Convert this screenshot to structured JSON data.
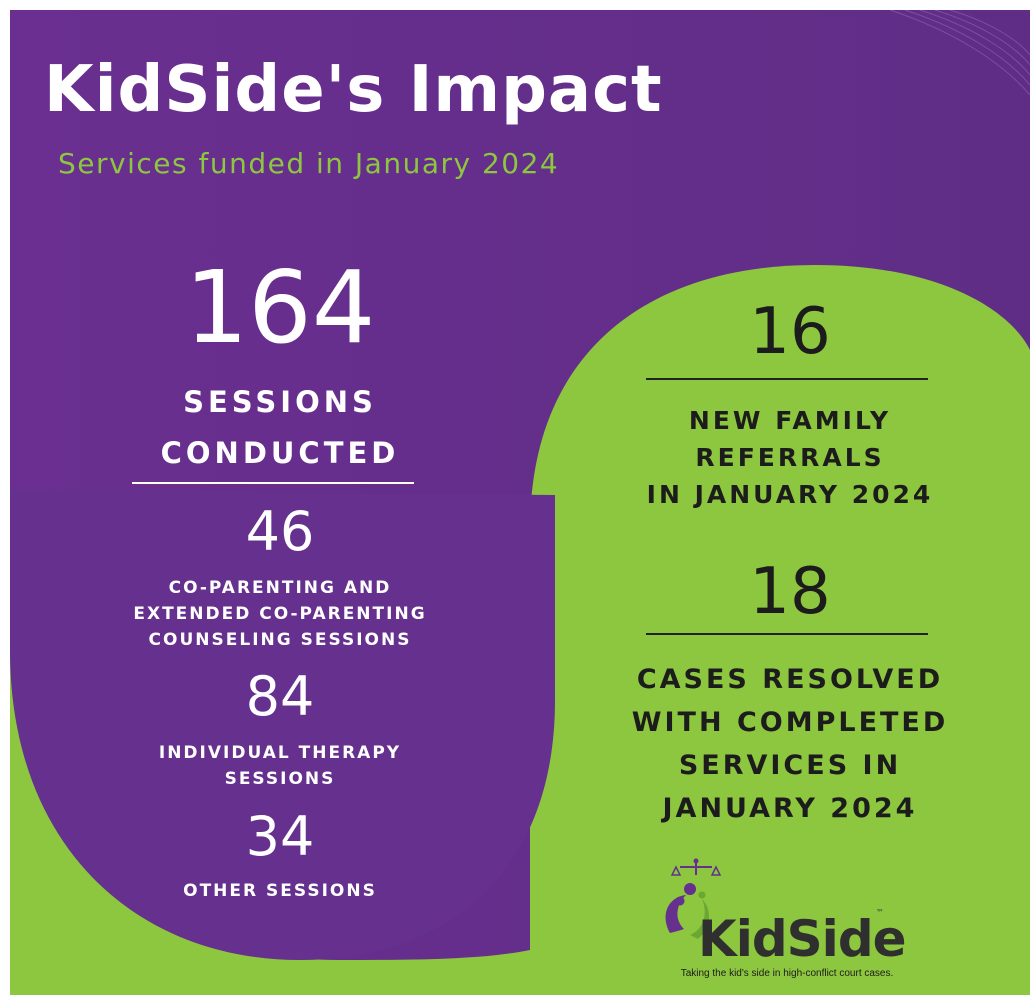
{
  "header": {
    "title": "KidSide's Impact",
    "subtitle": "Services funded in January 2024"
  },
  "colors": {
    "purple": "#65308e",
    "green": "#8dc63f",
    "white": "#ffffff",
    "dark_text": "#1c1c1c"
  },
  "left_panel": {
    "sessions_total": "164",
    "sessions_label_1": "SESSIONS",
    "sessions_label_2": "CONDUCTED",
    "coparenting_value": "46",
    "coparenting_label_1": "CO-PARENTING AND",
    "coparenting_label_2": "EXTENDED CO-PARENTING",
    "coparenting_label_3": "COUNSELING SESSIONS",
    "individual_value": "84",
    "individual_label_1": "INDIVIDUAL THERAPY",
    "individual_label_2": "SESSIONS",
    "other_value": "34",
    "other_label": "OTHER SESSIONS"
  },
  "right_panel": {
    "referrals_value": "16",
    "referrals_label_1": "NEW FAMILY",
    "referrals_label_2": "REFERRALS",
    "referrals_label_3": "IN JANUARY 2024",
    "resolved_value": "18",
    "resolved_label_1": "CASES RESOLVED",
    "resolved_label_2": "WITH COMPLETED",
    "resolved_label_3": "SERVICES IN",
    "resolved_label_4": "JANUARY 2024"
  },
  "logo": {
    "name": "KidSide",
    "trademark": "™",
    "tagline": "Taking the kid's side in high-conflict court cases.",
    "icon": "scales-of-justice-family-icon"
  }
}
